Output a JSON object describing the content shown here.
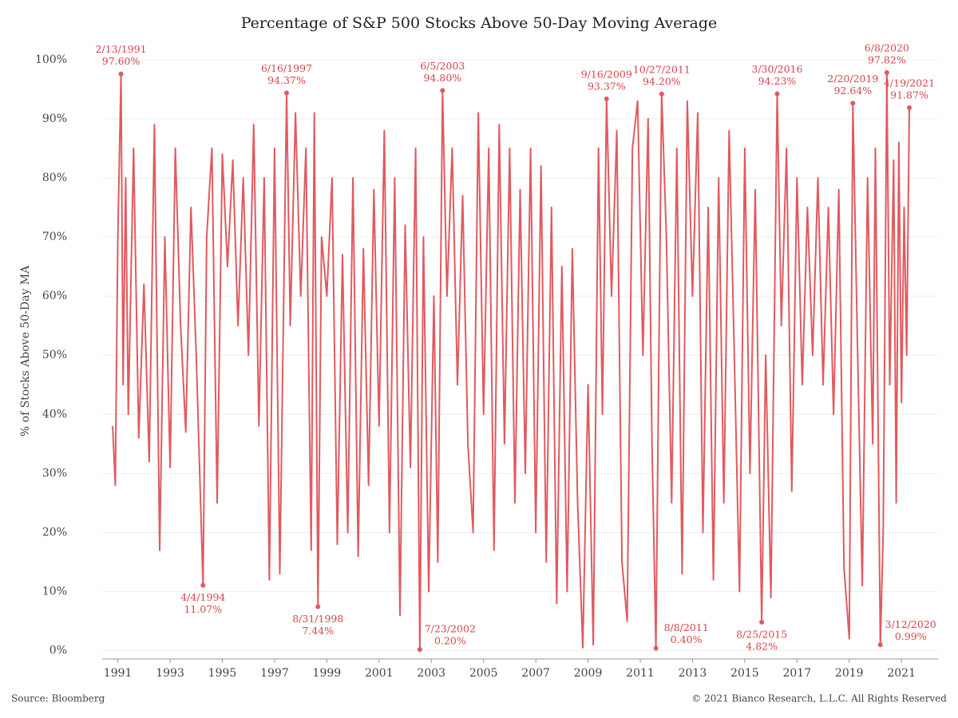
{
  "chart_data": {
    "type": "line",
    "title": "Percentage of S&P 500 Stocks Above 50-Day Moving Average",
    "y_label": "% of Stocks Above 50-Day MA",
    "source": "Source: Bloomberg",
    "copyright": "© 2021 Bianco Research, L.L.C. All Rights Reserved",
    "grid": true,
    "xlim": [
      1990.4,
      2022.4
    ],
    "ylim": [
      -1.4,
      102
    ],
    "xticks": [
      1991,
      1993,
      1995,
      1997,
      1999,
      2001,
      2003,
      2005,
      2007,
      2009,
      2011,
      2013,
      2015,
      2017,
      2019,
      2021
    ],
    "yticks": [
      {
        "value": 0,
        "label": "0%"
      },
      {
        "value": 10,
        "label": "10%"
      },
      {
        "value": 20,
        "label": "20%"
      },
      {
        "value": 30,
        "label": "30%"
      },
      {
        "value": 40,
        "label": "40%"
      },
      {
        "value": 50,
        "label": "50%"
      },
      {
        "value": 60,
        "label": "60%"
      },
      {
        "value": 70,
        "label": "70%"
      },
      {
        "value": 80,
        "label": "80%"
      },
      {
        "value": 90,
        "label": "90%"
      },
      {
        "value": 100,
        "label": "100%"
      }
    ],
    "series": [
      {
        "color": "#e05a5f",
        "x": [
          1990.8,
          1990.9,
          1991.0,
          1991.12,
          1991.2,
          1991.3,
          1991.4,
          1991.6,
          1991.8,
          1992.0,
          1992.2,
          1992.4,
          1992.6,
          1992.8,
          1993.0,
          1993.2,
          1993.4,
          1993.6,
          1993.8,
          1994.0,
          1994.26,
          1994.4,
          1994.6,
          1994.8,
          1995.0,
          1995.2,
          1995.4,
          1995.6,
          1995.8,
          1996.0,
          1996.2,
          1996.4,
          1996.6,
          1996.8,
          1997.0,
          1997.2,
          1997.46,
          1997.6,
          1997.8,
          1998.0,
          1998.2,
          1998.4,
          1998.52,
          1998.66,
          1998.8,
          1999.0,
          1999.2,
          1999.4,
          1999.6,
          1999.8,
          2000.0,
          2000.2,
          2000.4,
          2000.6,
          2000.8,
          2001.0,
          2001.2,
          2001.4,
          2001.6,
          2001.8,
          2002.0,
          2002.2,
          2002.4,
          2002.56,
          2002.7,
          2002.9,
          2003.1,
          2003.25,
          2003.43,
          2003.6,
          2003.8,
          2004.0,
          2004.2,
          2004.4,
          2004.6,
          2004.8,
          2005.0,
          2005.2,
          2005.4,
          2005.6,
          2005.8,
          2006.0,
          2006.2,
          2006.4,
          2006.6,
          2006.8,
          2007.0,
          2007.2,
          2007.4,
          2007.6,
          2007.8,
          2008.0,
          2008.2,
          2008.4,
          2008.6,
          2008.8,
          2009.0,
          2009.2,
          2009.4,
          2009.55,
          2009.71,
          2009.9,
          2010.1,
          2010.3,
          2010.5,
          2010.7,
          2010.9,
          2011.1,
          2011.3,
          2011.45,
          2011.6,
          2011.7,
          2011.82,
          2012.0,
          2012.2,
          2012.4,
          2012.6,
          2012.8,
          2013.0,
          2013.2,
          2013.4,
          2013.6,
          2013.8,
          2014.0,
          2014.2,
          2014.4,
          2014.6,
          2014.8,
          2015.0,
          2015.2,
          2015.4,
          2015.65,
          2015.8,
          2016.0,
          2016.24,
          2016.4,
          2016.6,
          2016.8,
          2017.0,
          2017.2,
          2017.4,
          2017.6,
          2017.8,
          2018.0,
          2018.2,
          2018.4,
          2018.6,
          2018.8,
          2019.0,
          2019.14,
          2019.3,
          2019.5,
          2019.7,
          2019.9,
          2020.0,
          2020.19,
          2020.3,
          2020.44,
          2020.55,
          2020.7,
          2020.8,
          2020.9,
          2021.0,
          2021.1,
          2021.2,
          2021.3
        ],
        "values": [
          38,
          28,
          70,
          97.6,
          45,
          80,
          40,
          85,
          36,
          62,
          32,
          89,
          17,
          70,
          31,
          85,
          55,
          37,
          75,
          50,
          11.07,
          70,
          85,
          25,
          84,
          65,
          83,
          55,
          80,
          50,
          89,
          38,
          80,
          12,
          85,
          13,
          94.37,
          55,
          91,
          60,
          85,
          17,
          91,
          7.44,
          70,
          60,
          80,
          18,
          67,
          20,
          80,
          16,
          68,
          28,
          78,
          38,
          88,
          20,
          80,
          6,
          72,
          31,
          85,
          0.2,
          70,
          10,
          60,
          15,
          94.8,
          60,
          85,
          45,
          77,
          35,
          20,
          91,
          40,
          85,
          17,
          89,
          35,
          85,
          25,
          78,
          30,
          85,
          20,
          82,
          15,
          75,
          8,
          65,
          10,
          68,
          25,
          0.5,
          45,
          1,
          85,
          40,
          93.37,
          60,
          88,
          15,
          5,
          85,
          93,
          50,
          90,
          35,
          0.4,
          45,
          94.2,
          70,
          25,
          85,
          13,
          93,
          60,
          91,
          20,
          75,
          12,
          80,
          25,
          88,
          50,
          10,
          85,
          30,
          78,
          4.82,
          50,
          9,
          94.23,
          55,
          85,
          27,
          80,
          45,
          75,
          50,
          80,
          45,
          75,
          40,
          78,
          14,
          2,
          92.64,
          55,
          11,
          80,
          35,
          85,
          0.99,
          20,
          97.82,
          45,
          83,
          25,
          86,
          42,
          75,
          50,
          91.87
        ]
      }
    ],
    "annotations": [
      {
        "date": "2/13/1991",
        "x": 1991.12,
        "value": 97.6,
        "value_label": "97.60%",
        "position": "above"
      },
      {
        "date": "4/4/1994",
        "x": 1994.26,
        "value": 11.07,
        "value_label": "11.07%",
        "position": "below"
      },
      {
        "date": "6/16/1997",
        "x": 1997.46,
        "value": 94.37,
        "value_label": "94.37%",
        "position": "above"
      },
      {
        "date": "8/31/1998",
        "x": 1998.66,
        "value": 7.44,
        "value_label": "7.44%",
        "position": "below"
      },
      {
        "date": "7/23/2002",
        "x": 2002.56,
        "value": 0.2,
        "value_label": "0.20%",
        "position": "upper-right"
      },
      {
        "date": "6/5/2003",
        "x": 2003.43,
        "value": 94.8,
        "value_label": "94.80%",
        "position": "above"
      },
      {
        "date": "9/16/2009",
        "x": 2009.71,
        "value": 93.37,
        "value_label": "93.37%",
        "position": "above"
      },
      {
        "date": "8/8/2011",
        "x": 2011.6,
        "value": 0.4,
        "value_label": "0.40%",
        "position": "upper-right"
      },
      {
        "date": "10/27/2011",
        "x": 2011.82,
        "value": 94.2,
        "value_label": "94.20%",
        "position": "above"
      },
      {
        "date": "8/25/2015",
        "x": 2015.65,
        "value": 4.82,
        "value_label": "4.82%",
        "position": "below"
      },
      {
        "date": "3/30/2016",
        "x": 2016.24,
        "value": 94.23,
        "value_label": "94.23%",
        "position": "above"
      },
      {
        "date": "2/20/2019",
        "x": 2019.14,
        "value": 92.64,
        "value_label": "92.64%",
        "position": "above"
      },
      {
        "date": "3/12/2020",
        "x": 2020.19,
        "value": 0.99,
        "value_label": "0.99%",
        "position": "upper-right"
      },
      {
        "date": "6/8/2020",
        "x": 2020.44,
        "value": 97.82,
        "value_label": "97.82%",
        "position": "above"
      },
      {
        "date": "4/19/2021",
        "x": 2021.3,
        "value": 91.87,
        "value_label": "91.87%",
        "position": "above"
      }
    ]
  }
}
